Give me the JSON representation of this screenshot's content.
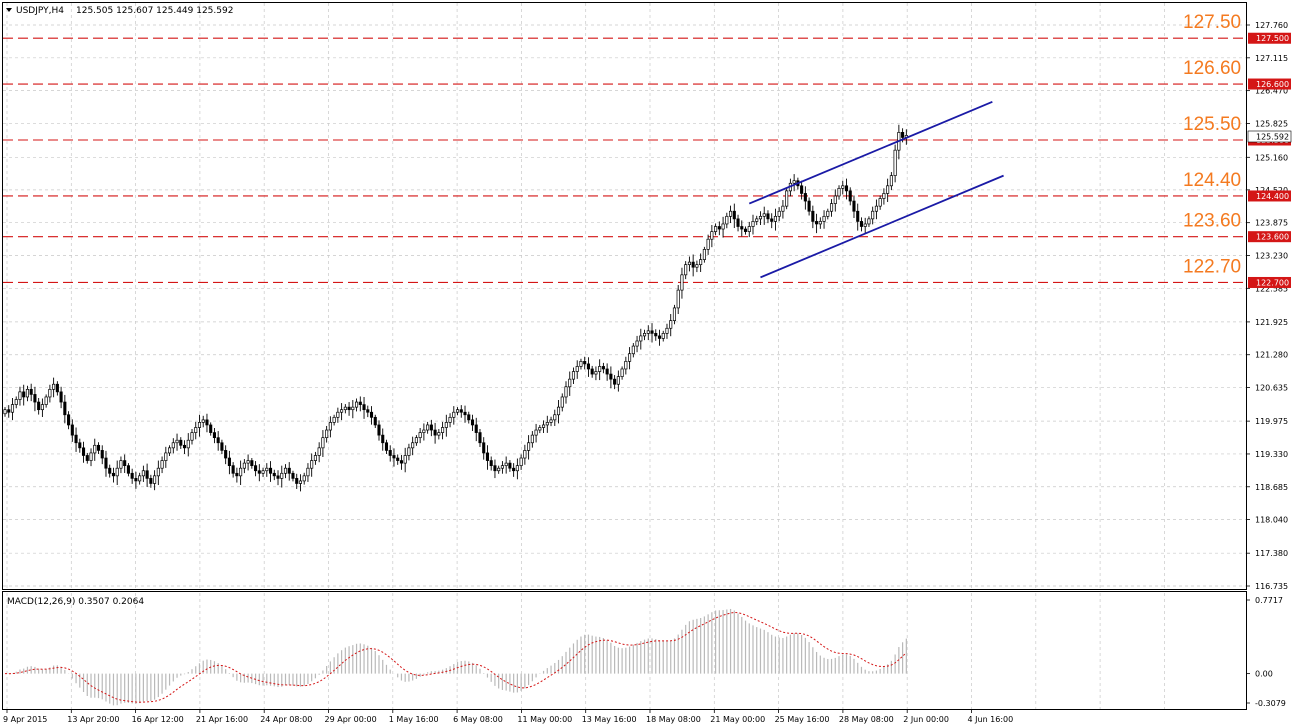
{
  "chart_data": [
    {
      "type": "candlestick",
      "symbol_header": "USDJPY,H4",
      "ohlc_readout": "125.505 125.607 125.449 125.592",
      "price_axis_ticks": [
        "127.760",
        "127.115",
        "126.470",
        "125.825",
        "125.160",
        "124.520",
        "123.875",
        "123.230",
        "122.585",
        "121.925",
        "121.280",
        "120.635",
        "119.975",
        "119.330",
        "118.685",
        "118.040",
        "117.380",
        "116.735"
      ],
      "ylim": [
        116.735,
        127.76
      ],
      "time_axis_labels": [
        "9 Apr 2015",
        "13 Apr 20:00",
        "16 Apr 12:00",
        "21 Apr 16:00",
        "24 Apr 08:00",
        "29 Apr 00:00",
        "1 May 16:00",
        "6 May 08:00",
        "11 May 00:00",
        "13 May 16:00",
        "18 May 08:00",
        "21 May 00:00",
        "25 May 16:00",
        "28 May 08:00",
        "2 Jun 00:00",
        "4 Jun 16:00"
      ],
      "current_price_label": "125.592",
      "levels": [
        {
          "value": 127.5,
          "label": "127.50",
          "axis_tag": "127.500"
        },
        {
          "value": 126.6,
          "label": "126.60",
          "axis_tag": "126.600"
        },
        {
          "value": 125.5,
          "label": "125.50",
          "axis_tag": "125.500"
        },
        {
          "value": 124.4,
          "label": "124.40",
          "axis_tag": "124.400"
        },
        {
          "value": 123.6,
          "label": "123.60",
          "axis_tag": "123.600"
        },
        {
          "value": 122.7,
          "label": "122.70",
          "axis_tag": "122.700"
        }
      ],
      "channel": {
        "upper": {
          "from": {
            "bar": 199,
            "price": 124.25
          },
          "to": {
            "bar": 264,
            "price": 126.25
          }
        },
        "lower": {
          "from": {
            "bar": 202,
            "price": 122.8
          },
          "to": {
            "bar": 267,
            "price": 124.8
          }
        }
      },
      "closes": [
        120.2,
        120.15,
        120.3,
        120.4,
        120.55,
        120.45,
        120.6,
        120.5,
        120.35,
        120.2,
        120.3,
        120.45,
        120.6,
        120.7,
        120.55,
        120.35,
        120.1,
        119.9,
        119.7,
        119.55,
        119.45,
        119.3,
        119.2,
        119.35,
        119.5,
        119.4,
        119.25,
        119.05,
        118.95,
        118.9,
        119.05,
        119.2,
        119.1,
        118.95,
        118.85,
        118.8,
        118.9,
        119.0,
        118.85,
        118.75,
        118.9,
        119.05,
        119.2,
        119.35,
        119.45,
        119.55,
        119.6,
        119.5,
        119.45,
        119.6,
        119.75,
        119.85,
        119.95,
        120.0,
        119.9,
        119.75,
        119.65,
        119.55,
        119.4,
        119.25,
        119.1,
        118.95,
        118.9,
        119.05,
        119.15,
        119.2,
        119.1,
        119.0,
        118.95,
        119.0,
        119.05,
        118.95,
        118.9,
        118.85,
        118.95,
        119.05,
        118.95,
        118.85,
        118.75,
        118.8,
        118.9,
        119.05,
        119.2,
        119.3,
        119.45,
        119.65,
        119.8,
        119.95,
        120.05,
        120.15,
        120.2,
        120.25,
        120.2,
        120.25,
        120.35,
        120.3,
        120.2,
        120.15,
        120.05,
        119.9,
        119.7,
        119.55,
        119.4,
        119.3,
        119.25,
        119.2,
        119.15,
        119.3,
        119.45,
        119.55,
        119.65,
        119.75,
        119.8,
        119.9,
        119.8,
        119.7,
        119.75,
        119.85,
        119.95,
        120.05,
        120.15,
        120.2,
        120.15,
        120.1,
        120.0,
        119.9,
        119.75,
        119.55,
        119.35,
        119.2,
        119.1,
        119.0,
        119.05,
        119.1,
        119.15,
        119.05,
        119.0,
        119.1,
        119.25,
        119.4,
        119.55,
        119.7,
        119.8,
        119.85,
        119.9,
        119.95,
        120.0,
        120.1,
        120.25,
        120.45,
        120.65,
        120.8,
        120.95,
        121.05,
        121.15,
        121.1,
        121.0,
        120.9,
        120.95,
        121.05,
        121.0,
        120.9,
        120.8,
        120.7,
        120.85,
        121.0,
        121.15,
        121.3,
        121.45,
        121.55,
        121.65,
        121.7,
        121.75,
        121.7,
        121.65,
        121.6,
        121.7,
        121.8,
        121.95,
        122.2,
        122.55,
        122.85,
        123.05,
        123.1,
        123.0,
        123.05,
        123.15,
        123.35,
        123.55,
        123.7,
        123.8,
        123.75,
        123.85,
        124.0,
        124.1,
        123.95,
        123.8,
        123.75,
        123.7,
        123.8,
        123.9,
        123.95,
        124.0,
        124.05,
        123.95,
        123.9,
        124.0,
        124.1,
        124.2,
        124.5,
        124.65,
        124.7,
        124.6,
        124.45,
        124.3,
        124.1,
        123.9,
        123.85,
        123.9,
        124.0,
        124.1,
        124.25,
        124.4,
        124.55,
        124.6,
        124.5,
        124.3,
        124.1,
        123.9,
        123.8,
        123.85,
        123.95,
        124.1,
        124.2,
        124.35,
        124.45,
        124.6,
        124.8,
        125.3,
        125.65,
        125.55,
        125.59
      ],
      "macd_panel": {
        "title": "MACD(12,26,9) 0.3507 0.2064",
        "axis_ticks": [
          "0.7717",
          "0.00",
          "-0.3079"
        ],
        "ylim": [
          -0.3079,
          0.7717
        ]
      }
    }
  ]
}
